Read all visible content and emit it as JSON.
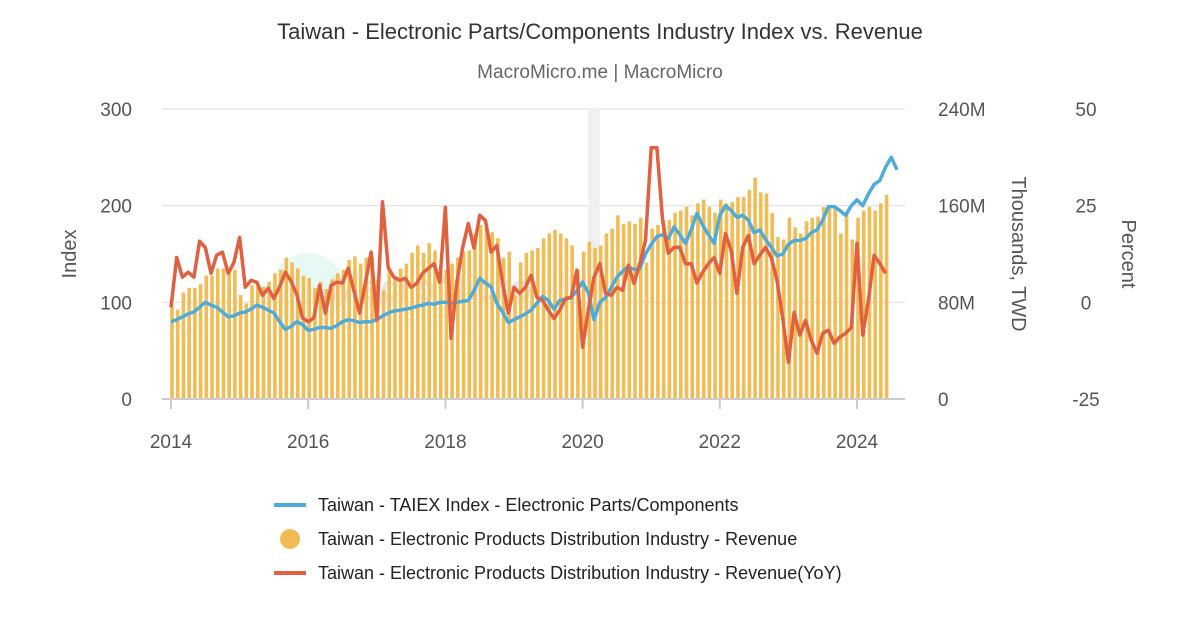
{
  "chart_data": {
    "type": "bar+line",
    "title": "Taiwan - Electronic Parts/Components Industry Index vs. Revenue",
    "subtitle": "MacroMicro.me | MacroMicro",
    "watermark": "MacroMicro",
    "start": "2014-01",
    "frequency": "monthly",
    "x_ticks": [
      "2014",
      "2016",
      "2018",
      "2020",
      "2022",
      "2024"
    ],
    "xlim": [
      "2014-01",
      "2024-09"
    ],
    "grid": true,
    "legend_position": "bottom",
    "shaded_periods": [
      [
        "2020-02",
        "2020-04"
      ]
    ],
    "axes": {
      "left": {
        "label": "Index",
        "range": [
          0,
          300
        ],
        "ticks": [
          "0",
          "100",
          "200",
          "300"
        ]
      },
      "middle": {
        "label": "Thousands, TWD",
        "range": [
          0,
          240000000
        ],
        "ticks": [
          "0",
          "80M",
          "160M",
          "240M"
        ]
      },
      "right": {
        "label": "Percent",
        "range": [
          -25,
          50
        ],
        "ticks": [
          "-25",
          "0",
          "25",
          "50"
        ]
      }
    },
    "series": [
      {
        "name": "Taiwan - TAIEX Index - Electronic Parts/Components",
        "type": "line",
        "axis": "left",
        "color": "#4eacd8",
        "values": [
          80,
          82,
          85,
          88,
          90,
          95,
          100,
          97,
          95,
          90,
          85,
          86,
          89,
          90,
          93,
          97,
          95,
          92,
          89,
          80,
          72,
          75,
          80,
          77,
          71,
          72,
          74,
          74,
          73,
          76,
          80,
          82,
          81,
          79,
          80,
          80,
          82,
          86,
          89,
          91,
          92,
          93,
          94,
          96,
          97,
          99,
          98,
          100,
          100,
          99,
          100,
          101,
          102,
          112,
          125,
          120,
          116,
          99,
          90,
          79,
          82,
          85,
          88,
          92,
          99,
          106,
          102,
          93,
          102,
          103,
          105,
          112,
          121,
          110,
          82,
          100,
          105,
          115,
          126,
          132,
          137,
          134,
          135,
          150,
          160,
          168,
          170,
          166,
          178,
          170,
          161,
          175,
          192,
          180,
          170,
          161,
          190,
          200,
          195,
          188,
          190,
          185,
          172,
          175,
          165,
          157,
          148,
          150,
          160,
          164,
          164,
          166,
          172,
          175,
          185,
          199,
          199,
          195,
          190,
          200,
          206,
          200,
          212,
          222,
          226,
          240,
          250,
          237
        ]
      },
      {
        "name": "Taiwan - Electronic Products Distribution Industry - Revenue",
        "type": "bar",
        "axis": "middle",
        "unit": "million TWD (thousands scale)",
        "color": "#f2bc55",
        "values": [
          76,
          74,
          88,
          92,
          92,
          95,
          102,
          102,
          108,
          108,
          107,
          107,
          86,
          79,
          94,
          93,
          93,
          97,
          104,
          107,
          117,
          113,
          108,
          102,
          100,
          92,
          97,
          91,
          99,
          104,
          107,
          115,
          118,
          112,
          117,
          118,
          99,
          90,
          107,
          100,
          108,
          112,
          121,
          127,
          121,
          129,
          123,
          107,
          107,
          112,
          117,
          122,
          123,
          137,
          144,
          142,
          138,
          133,
          117,
          122,
          86,
          113,
          121,
          123,
          125,
          133,
          137,
          140,
          137,
          133,
          127,
          107,
          122,
          130,
          125,
          127,
          137,
          141,
          152,
          145,
          147,
          145,
          150,
          113,
          141,
          144,
          148,
          148,
          154,
          156,
          159,
          152,
          162,
          165,
          159,
          154,
          165,
          162,
          163,
          167,
          167,
          173,
          183,
          171,
          170,
          154,
          134,
          132,
          150,
          142,
          137,
          147,
          150,
          151,
          159,
          160,
          160,
          137,
          154,
          132,
          150,
          156,
          159,
          156,
          162,
          169
        ]
      },
      {
        "name": "Taiwan - Electronic Products Distribution Industry - Revenue(YoY)",
        "type": "line",
        "axis": "right",
        "color": "#e0603f",
        "values": [
          -1.3,
          11.6,
          6.5,
          7.8,
          6.5,
          15.8,
          14.2,
          7.5,
          12.2,
          13,
          7.5,
          10.3,
          16.8,
          3.9,
          5.7,
          5.2,
          1.8,
          3.6,
          1,
          4,
          7.8,
          5.5,
          2,
          -4,
          -5,
          -4,
          4.4,
          -2.8,
          4.4,
          5.2,
          5,
          8.8,
          3,
          -2.8,
          5,
          13,
          -4.6,
          26,
          9,
          6.5,
          5.7,
          6.2,
          3.9,
          4.9,
          7.5,
          8.8,
          10,
          5.2,
          24.6,
          -9.3,
          5,
          14,
          20.4,
          14,
          22.5,
          21.2,
          13,
          14.7,
          5,
          -2.8,
          3.9,
          2.3,
          3.9,
          7,
          1.3,
          0.5,
          -2,
          -4.2,
          -2,
          1,
          1.3,
          8.3,
          -11.6,
          -2,
          6.5,
          10,
          2.3,
          1.8,
          3.9,
          3.1,
          9.6,
          4.9,
          10,
          16,
          40,
          40,
          21.2,
          12.7,
          14.2,
          14.2,
          10,
          10,
          5,
          7.8,
          10,
          11.6,
          7.5,
          17.8,
          13.4,
          2.3,
          14.2,
          17.3,
          10,
          12.2,
          14.2,
          11.6,
          5.7,
          -4,
          -15.5,
          -2.6,
          -8.5,
          -4.7,
          -9.8,
          -13.2,
          -8,
          -7.2,
          -10.6,
          -9,
          -8,
          -6.5,
          15.3,
          -8.5,
          0.5,
          12.2,
          10,
          7.5
        ]
      }
    ]
  }
}
